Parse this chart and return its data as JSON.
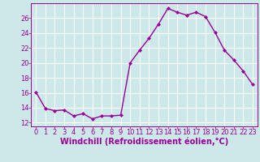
{
  "x": [
    0,
    1,
    2,
    3,
    4,
    5,
    6,
    7,
    8,
    9,
    10,
    11,
    12,
    13,
    14,
    15,
    16,
    17,
    18,
    19,
    20,
    21,
    22,
    23
  ],
  "y": [
    16.1,
    13.9,
    13.6,
    13.7,
    12.9,
    13.2,
    12.5,
    12.9,
    12.9,
    13.0,
    20.0,
    21.7,
    23.3,
    25.2,
    27.3,
    26.8,
    26.4,
    26.8,
    26.2,
    24.1,
    21.7,
    20.4,
    18.9,
    17.1
  ],
  "line_color": "#990099",
  "marker": "D",
  "marker_size": 2.0,
  "bg_color": "#cce8e8",
  "grid_color": "#ffffff",
  "xlabel": "Windchill (Refroidissement éolien,°C)",
  "ylabel": "",
  "xlim": [
    -0.5,
    23.5
  ],
  "ylim": [
    11.5,
    28.0
  ],
  "yticks": [
    12,
    14,
    16,
    18,
    20,
    22,
    24,
    26
  ],
  "xticks": [
    0,
    1,
    2,
    3,
    4,
    5,
    6,
    7,
    8,
    9,
    10,
    11,
    12,
    13,
    14,
    15,
    16,
    17,
    18,
    19,
    20,
    21,
    22,
    23
  ],
  "tick_color": "#990099",
  "label_color": "#990099",
  "font_size": 6.0,
  "xlabel_fontsize": 7.0,
  "line_width": 1.0
}
